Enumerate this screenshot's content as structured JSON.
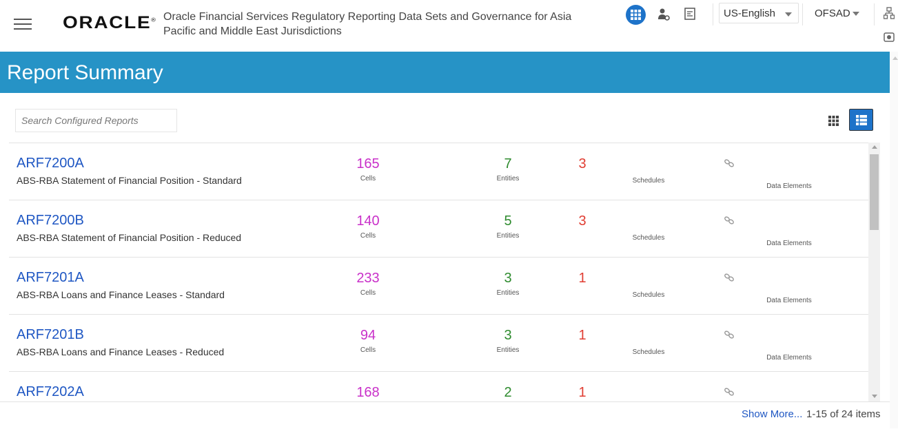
{
  "header": {
    "logo": "ORACLE",
    "app_title": "Oracle Financial Services Regulatory Reporting Data Sets and Governance for Asia Pacific and Middle East Jurisdictions",
    "language": "US-English",
    "user": "OFSAD",
    "accent_color": "#1e73c9"
  },
  "page": {
    "title": "Report Summary",
    "banner_color": "#2693c6"
  },
  "search": {
    "placeholder": "Search Configured Reports"
  },
  "reports": [
    {
      "code": "ARF7200A",
      "name": "ABS-RBA Statement of Financial Position - Standard",
      "cells": "165",
      "entities": "7",
      "schedules": "3"
    },
    {
      "code": "ARF7200B",
      "name": "ABS-RBA Statement of Financial Position - Reduced",
      "cells": "140",
      "entities": "5",
      "schedules": "3"
    },
    {
      "code": "ARF7201A",
      "name": "ABS-RBA Loans and Finance Leases - Standard",
      "cells": "233",
      "entities": "3",
      "schedules": "1"
    },
    {
      "code": "ARF7201B",
      "name": "ABS-RBA Loans and Finance Leases - Reduced",
      "cells": "94",
      "entities": "3",
      "schedules": "1"
    },
    {
      "code": "ARF7202A",
      "name": "",
      "cells": "168",
      "entities": "2",
      "schedules": "1"
    }
  ],
  "labels": {
    "cells": "Cells",
    "entities": "Entities",
    "schedules": "Schedules",
    "data_elements": "Data Elements"
  },
  "footer": {
    "show_more": "Show More...",
    "pagination": "1-15 of 24 items"
  }
}
